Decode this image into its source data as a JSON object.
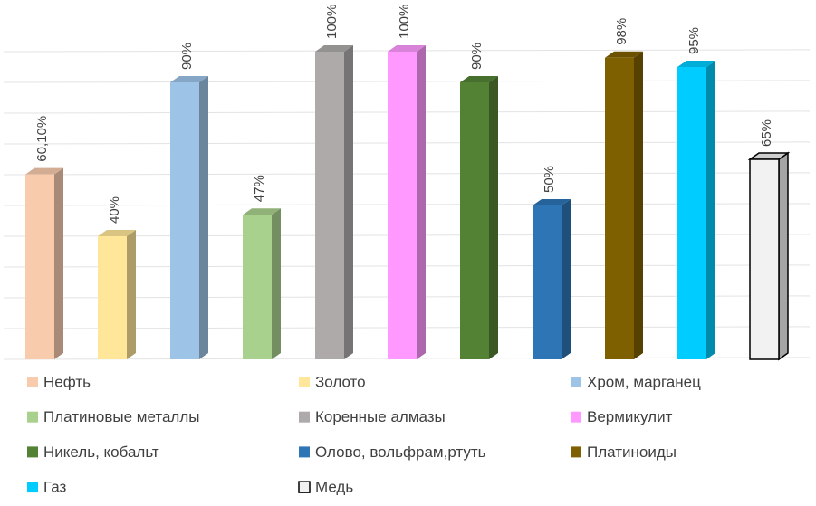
{
  "chart_data": {
    "type": "bar3d",
    "ylim": [
      0,
      100
    ],
    "yticks": [
      0,
      10,
      20,
      30,
      40,
      50,
      60,
      70,
      80,
      90,
      100
    ],
    "grid": true,
    "series": [
      {
        "name": "Нефть",
        "color": "#f8cbad",
        "values": [
          60.1
        ],
        "value_labels": [
          "60,10%"
        ]
      },
      {
        "name": "Золото",
        "color": "#ffe699",
        "values": [
          40
        ],
        "value_labels": [
          "40%"
        ]
      },
      {
        "name": "Хром, марганец",
        "color": "#9dc3e6",
        "values": [
          90
        ],
        "value_labels": [
          "90%"
        ]
      },
      {
        "name": "Платиновые металлы",
        "color": "#a9d18e",
        "values": [
          47
        ],
        "value_labels": [
          "47%"
        ]
      },
      {
        "name": "Коренные алмазы",
        "color": "#aeaaaa",
        "values": [
          100
        ],
        "value_labels": [
          "100%"
        ]
      },
      {
        "name": "Вермикулит",
        "color": "#ff99ff",
        "values": [
          100
        ],
        "value_labels": [
          "100%"
        ]
      },
      {
        "name": "Никель, кобальт",
        "color": "#548235",
        "values": [
          90
        ],
        "value_labels": [
          "90%"
        ]
      },
      {
        "name": "Олово, вольфрам,ртуть",
        "color": "#2e75b6",
        "values": [
          50
        ],
        "value_labels": [
          "50%"
        ]
      },
      {
        "name": "Платиноиды",
        "color": "#7f6000",
        "values": [
          98
        ],
        "value_labels": [
          "98%"
        ]
      },
      {
        "name": "Газ",
        "color": "#00ccff",
        "values": [
          95
        ],
        "value_labels": [
          "95%"
        ]
      },
      {
        "name": "Медь",
        "color": "#f2f2f2",
        "edgecolor": "#000000",
        "values": [
          65
        ],
        "value_labels": [
          "65%"
        ]
      }
    ]
  }
}
